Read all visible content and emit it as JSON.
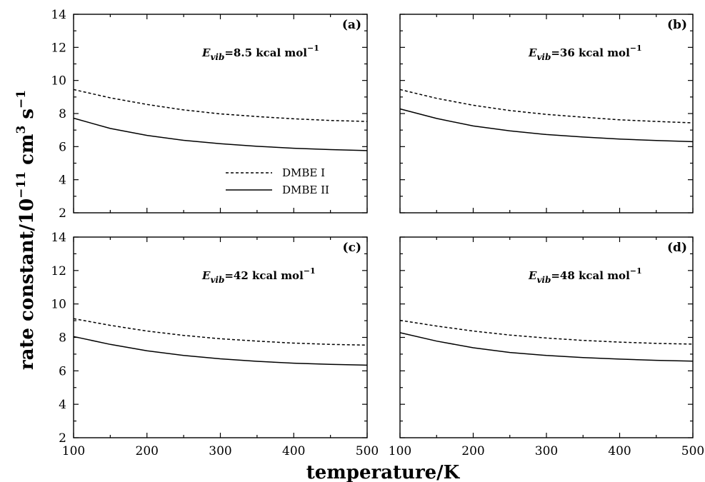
{
  "chart_data": {
    "type": "line",
    "xlabel": "temperature/K",
    "ylabel_base": "rate constant/10",
    "ylabel_exp": "−11",
    "ylabel_unit1": " cm",
    "ylabel_exp2": "3",
    "ylabel_unit2": " s",
    "ylabel_exp3": "−1",
    "xlim": [
      100,
      500
    ],
    "ylim": [
      2,
      14
    ],
    "xticks": [
      100,
      200,
      300,
      400,
      500
    ],
    "yticks": [
      2,
      4,
      6,
      8,
      10,
      12,
      14
    ],
    "legend": {
      "placement": "panel (a), lower center",
      "entries": [
        {
          "name": "DMBE I",
          "style": "dotted"
        },
        {
          "name": "DMBE II",
          "style": "solid"
        }
      ]
    },
    "x": [
      100,
      150,
      200,
      250,
      300,
      350,
      400,
      450,
      500
    ],
    "panels": [
      {
        "tag": "(a)",
        "evib_symbol": "E",
        "evib_sub": "vib",
        "evib_value": "=8.5 kcal mol",
        "evib_exp": "−1",
        "series": [
          {
            "name": "DMBE I",
            "style": "dotted",
            "values": [
              9.45,
              8.95,
              8.55,
              8.22,
              7.98,
              7.82,
              7.68,
              7.58,
              7.52
            ]
          },
          {
            "name": "DMBE II",
            "style": "solid",
            "values": [
              7.72,
              7.1,
              6.68,
              6.38,
              6.18,
              6.02,
              5.9,
              5.82,
              5.76
            ]
          }
        ]
      },
      {
        "tag": "(b)",
        "evib_symbol": "E",
        "evib_sub": "vib",
        "evib_value": "=36 kcal mol",
        "evib_exp": "−1",
        "series": [
          {
            "name": "DMBE I",
            "style": "dotted",
            "values": [
              9.45,
              8.92,
              8.5,
              8.18,
              7.95,
              7.78,
              7.62,
              7.52,
              7.44
            ]
          },
          {
            "name": "DMBE II",
            "style": "solid",
            "values": [
              8.28,
              7.7,
              7.25,
              6.95,
              6.73,
              6.58,
              6.46,
              6.37,
              6.3
            ]
          }
        ]
      },
      {
        "tag": "(c)",
        "evib_symbol": "E",
        "evib_sub": "vib",
        "evib_value": "=42 kcal mol",
        "evib_exp": "−1",
        "series": [
          {
            "name": "DMBE I",
            "style": "dotted",
            "values": [
              9.12,
              8.72,
              8.38,
              8.12,
              7.92,
              7.78,
              7.66,
              7.58,
              7.54
            ]
          },
          {
            "name": "DMBE II",
            "style": "solid",
            "values": [
              8.05,
              7.58,
              7.2,
              6.92,
              6.72,
              6.57,
              6.46,
              6.39,
              6.34
            ]
          }
        ]
      },
      {
        "tag": "(d)",
        "evib_symbol": "E",
        "evib_sub": "vib",
        "evib_value": "=48 kcal mol",
        "evib_exp": "−1",
        "series": [
          {
            "name": "DMBE I",
            "style": "dotted",
            "values": [
              9.02,
              8.68,
              8.38,
              8.14,
              7.96,
              7.82,
              7.72,
              7.64,
              7.6
            ]
          },
          {
            "name": "DMBE II",
            "style": "solid",
            "values": [
              8.28,
              7.78,
              7.38,
              7.1,
              6.92,
              6.79,
              6.7,
              6.63,
              6.58
            ]
          }
        ]
      }
    ]
  }
}
